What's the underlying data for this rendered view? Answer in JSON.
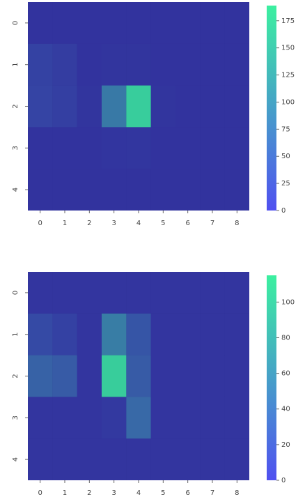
{
  "chart_data": [
    {
      "type": "heatmap",
      "xticks": [
        0,
        1,
        2,
        3,
        4,
        5,
        6,
        7,
        8
      ],
      "xlim": [
        -0.5,
        8.5
      ],
      "yticks": [
        0,
        1,
        2,
        3,
        4
      ],
      "ylim": [
        4.5,
        -0.5
      ],
      "clim": [
        0,
        189
      ],
      "cticks": [
        0,
        25,
        50,
        75,
        100,
        125,
        150,
        175
      ],
      "colors": [
        "#5050f0",
        "#3cf0a0"
      ],
      "background": "#25257a",
      "z": [
        [
          5,
          5,
          5,
          5,
          5,
          5,
          5,
          5,
          5
        ],
        [
          35,
          25,
          5,
          8,
          8,
          5,
          5,
          5,
          5
        ],
        [
          40,
          30,
          8,
          110,
          185,
          8,
          5,
          5,
          5
        ],
        [
          5,
          5,
          5,
          10,
          12,
          5,
          5,
          5,
          5
        ],
        [
          5,
          5,
          5,
          5,
          5,
          5,
          5,
          5,
          5
        ]
      ]
    },
    {
      "type": "heatmap",
      "xticks": [
        0,
        1,
        2,
        3,
        4,
        5,
        6,
        7,
        8
      ],
      "xlim": [
        -0.5,
        8.5
      ],
      "yticks": [
        0,
        1,
        2,
        3,
        4
      ],
      "ylim": [
        4.5,
        -0.5
      ],
      "clim": [
        0,
        115
      ],
      "cticks": [
        0,
        20,
        40,
        60,
        80,
        100
      ],
      "colors": [
        "#5050f0",
        "#3cf0a0"
      ],
      "background": "#25257a",
      "z": [
        [
          5,
          5,
          5,
          5,
          5,
          5,
          5,
          5,
          5
        ],
        [
          30,
          20,
          5,
          70,
          40,
          5,
          5,
          5,
          5
        ],
        [
          50,
          45,
          5,
          113,
          45,
          5,
          5,
          5,
          5
        ],
        [
          5,
          5,
          5,
          10,
          55,
          5,
          5,
          5,
          5
        ],
        [
          5,
          5,
          5,
          5,
          5,
          5,
          5,
          5,
          5
        ]
      ]
    }
  ]
}
